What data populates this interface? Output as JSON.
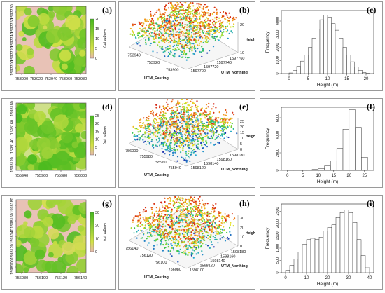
{
  "panels": [
    {
      "label": "(a)",
      "kind": "map",
      "x_ticks": [
        "753900",
        "753920",
        "753940",
        "753960",
        "753980"
      ],
      "y_ticks": [
        "1597780",
        "1597760",
        "1597740",
        "1597720",
        "1597700"
      ],
      "colorbar_ticks": [
        "20",
        "15",
        "10",
        "5",
        "0"
      ],
      "colorbar_title": "Height (m)"
    },
    {
      "label": "(b)",
      "kind": "cloud",
      "easting_ticks": [
        "753940",
        "753920",
        "753900"
      ],
      "northing_ticks": [
        "1597700",
        "1597720",
        "1597740",
        "1597760"
      ],
      "z_ticks": [
        "20",
        "10"
      ],
      "easting_label": "UTM_Easting",
      "northing_label": "UTM_Northing",
      "z_label": "Height (m)"
    },
    {
      "label": "(c)",
      "kind": "hist",
      "x_ticks": [
        "0",
        "5",
        "10",
        "15",
        "20"
      ],
      "y_ticks": [
        "0",
        "1000",
        "2000",
        "3000",
        "4000"
      ],
      "xlabel": "Height (m)",
      "ylabel": "Frequency"
    },
    {
      "label": "(d)",
      "kind": "map",
      "x_ticks": [
        "755940",
        "755960",
        "755980",
        "756000"
      ],
      "y_ticks": [
        "1598180",
        "1598160",
        "1598140",
        "1598120"
      ],
      "colorbar_ticks": [
        "25",
        "20",
        "15",
        "10",
        "5",
        "0"
      ],
      "colorbar_title": "Height (m)"
    },
    {
      "label": "(e)",
      "kind": "cloud",
      "easting_ticks": [
        "756000",
        "755980",
        "755960",
        "755940"
      ],
      "northing_ticks": [
        "1598120",
        "1598140",
        "1598160",
        "1598180"
      ],
      "z_ticks": [
        "25",
        "20",
        "15",
        "10",
        "5",
        "0"
      ],
      "easting_label": "UTM_Easting",
      "northing_label": "UTM_Northing",
      "z_label": "Height (m)"
    },
    {
      "label": "(f)",
      "kind": "hist",
      "x_ticks": [
        "0",
        "5",
        "10",
        "15",
        "20",
        "25"
      ],
      "y_ticks": [
        "0",
        "2000",
        "4000",
        "6000"
      ],
      "xlabel": "Height (m)",
      "ylabel": "Frequency"
    },
    {
      "label": "(g)",
      "kind": "map",
      "x_ticks": [
        "756080",
        "756100",
        "756120",
        "756140"
      ],
      "y_ticks": [
        "1598180",
        "1598160",
        "1598140",
        "1598120",
        "1598100"
      ],
      "colorbar_ticks": [
        "30",
        "20",
        "10",
        "0"
      ],
      "colorbar_title": "Height (m)"
    },
    {
      "label": "(h)",
      "kind": "cloud",
      "easting_ticks": [
        "756140",
        "756120",
        "756100",
        "756080"
      ],
      "northing_ticks": [
        "1598100",
        "1598120",
        "1598140",
        "1598160",
        "1598180"
      ],
      "z_ticks": [
        "30",
        "20",
        "10",
        "0"
      ],
      "easting_label": "UTM_Easting",
      "northing_label": "UTM_Northing",
      "z_label": "Height (m)"
    },
    {
      "label": "(i)",
      "kind": "hist",
      "x_ticks": [
        "0",
        "10",
        "20",
        "30",
        "40"
      ],
      "y_ticks": [
        "0",
        "500",
        "1000",
        "1500",
        "2000",
        "2500"
      ],
      "xlabel": "Height (m)",
      "ylabel": "Frequency"
    }
  ],
  "chart_data": [
    {
      "type": "bar",
      "panel": "(c)",
      "xlabel": "Height (m)",
      "ylabel": "Frequency",
      "xlim": [
        -2,
        22
      ],
      "ylim": [
        0,
        4800
      ],
      "bin_width": 1,
      "bins": [
        0,
        1,
        2,
        3,
        4,
        5,
        6,
        7,
        8,
        9,
        10,
        11,
        12,
        13,
        14,
        15,
        16,
        17,
        18,
        19,
        20
      ],
      "values": [
        50,
        250,
        550,
        950,
        1400,
        2000,
        2700,
        3400,
        4100,
        4450,
        4300,
        3800,
        3300,
        2700,
        2000,
        1400,
        900,
        500,
        250,
        80,
        20
      ]
    },
    {
      "type": "bar",
      "panel": "(f)",
      "xlabel": "Height (m)",
      "ylabel": "Frequency",
      "xlim": [
        -2,
        28
      ],
      "ylim": [
        0,
        7200
      ],
      "bin_width": 2,
      "bins": [
        0,
        2,
        4,
        6,
        8,
        10,
        12,
        14,
        16,
        18,
        20,
        22,
        24
      ],
      "values": [
        10,
        20,
        40,
        60,
        100,
        200,
        500,
        1100,
        2500,
        4700,
        6900,
        4900,
        1500
      ]
    },
    {
      "type": "bar",
      "panel": "(i)",
      "xlabel": "Height (m)",
      "ylabel": "Frequency",
      "xlim": [
        -2,
        42
      ],
      "ylim": [
        0,
        2800
      ],
      "bin_width": 2,
      "bins": [
        0,
        2,
        4,
        6,
        8,
        10,
        12,
        14,
        16,
        18,
        20,
        22,
        24,
        26,
        28,
        30,
        32,
        34,
        36,
        38
      ],
      "values": [
        100,
        300,
        550,
        850,
        1150,
        1350,
        1400,
        1350,
        1450,
        1700,
        1850,
        1950,
        2250,
        2450,
        2550,
        2450,
        2050,
        1350,
        700,
        200
      ]
    }
  ]
}
